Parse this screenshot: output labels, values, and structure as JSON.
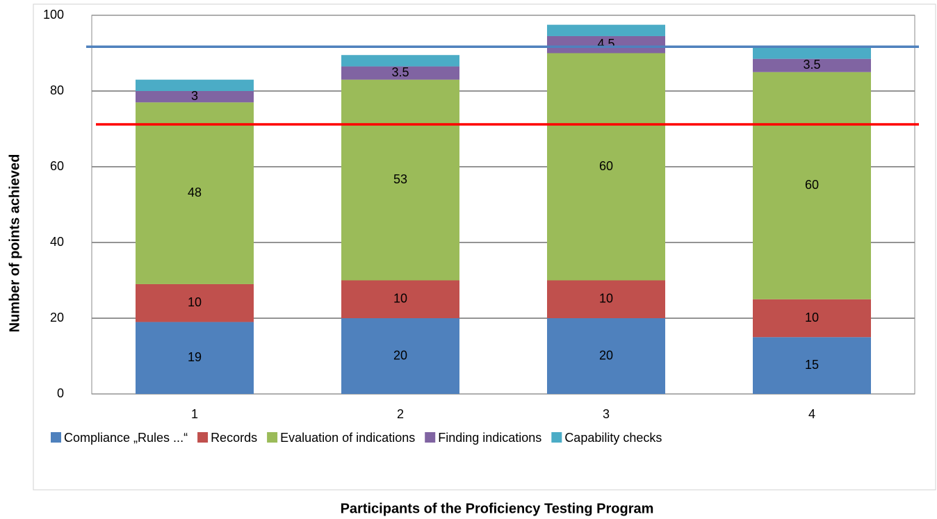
{
  "chart_data": {
    "type": "stacked_bar",
    "x_label": "Participants of the Proficiency Testing Program",
    "y_label": "Number of points achieved",
    "categories": [
      "1",
      "2",
      "3",
      "4"
    ],
    "series": [
      {
        "name": "Compliance „Rules ...“",
        "color": "#4f81bd",
        "values": [
          19,
          20,
          20,
          15
        ]
      },
      {
        "name": "Records",
        "color": "#c0504d",
        "values": [
          10,
          10,
          10,
          10
        ]
      },
      {
        "name": "Evaluation of indications",
        "color": "#9bbb59",
        "values": [
          48,
          53,
          60,
          60
        ]
      },
      {
        "name": "Finding indications",
        "color": "#8064a2",
        "values": [
          3,
          3.5,
          4.5,
          3.5
        ]
      },
      {
        "name": "Capability checks",
        "color": "#4bacc6",
        "values": [
          3,
          3,
          3,
          3
        ],
        "show_labels": false
      }
    ],
    "reference_lines": [
      {
        "value": 91.7,
        "color": "#4f81bd"
      },
      {
        "value": 71.2,
        "color": "#ff0000"
      }
    ],
    "ylim": [
      0,
      100
    ],
    "yticks": [
      0,
      20,
      40,
      60,
      80,
      100
    ],
    "grid": true,
    "legend": "bottom"
  }
}
